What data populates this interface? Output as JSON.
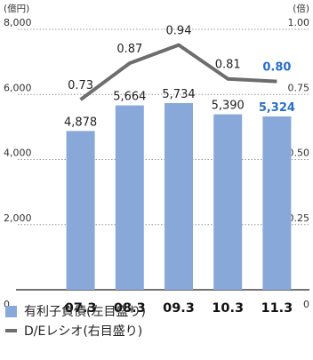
{
  "chart_data": {
    "type": "bar",
    "categories": [
      "07.3",
      "08.3",
      "09.3",
      "10.3",
      "11.3"
    ],
    "left_axis": {
      "unit": "(億円)",
      "ticks": [
        "8,000",
        "6,000",
        "4,000",
        "2,000",
        "0"
      ],
      "ylim": [
        0,
        8000
      ]
    },
    "right_axis": {
      "unit": "(倍)",
      "ticks": [
        "1.00",
        "0.75",
        "0.50",
        "0.25",
        "0"
      ],
      "ylim": [
        0,
        1.0
      ]
    },
    "series": [
      {
        "name": "有利子負債(左目盛り)",
        "type": "bar",
        "axis": "left",
        "values": [
          4878,
          5664,
          5734,
          5390,
          5324
        ],
        "labels": [
          "4,878",
          "5,664",
          "5,734",
          "5,390",
          "5,324"
        ]
      },
      {
        "name": "D/Eレシオ(右目盛り)",
        "type": "line",
        "axis": "right",
        "values": [
          0.73,
          0.87,
          0.94,
          0.81,
          0.8
        ],
        "labels": [
          "0.73",
          "0.87",
          "0.94",
          "0.81",
          "0.80"
        ]
      }
    ],
    "highlight_index": 4,
    "colors": {
      "bar": "#88a8da",
      "line": "#6d6d6d",
      "highlight": "#2a6fc9",
      "grid": "#9a9a9a"
    },
    "grid": true
  }
}
